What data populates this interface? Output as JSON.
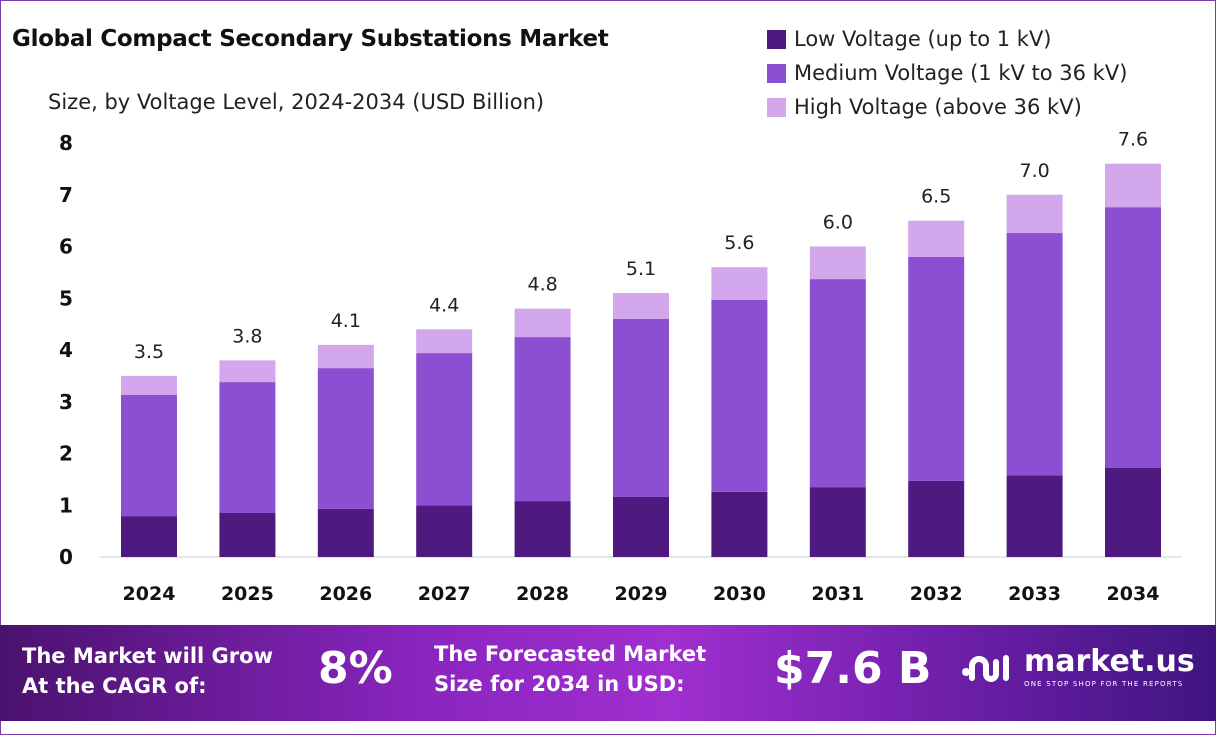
{
  "chart_data": {
    "type": "bar",
    "stacked": true,
    "title": "Global Compact Secondary Substations Market",
    "subtitle": "Size, by Voltage Level, 2024-2034 (USD Billion)",
    "categories": [
      "2024",
      "2025",
      "2026",
      "2027",
      "2028",
      "2029",
      "2030",
      "2031",
      "2032",
      "2033",
      "2034"
    ],
    "series": [
      {
        "name": "Low Voltage (up to 1 kV)",
        "color": "#4e1a80",
        "values": [
          0.79,
          0.85,
          0.93,
          1.0,
          1.08,
          1.16,
          1.26,
          1.35,
          1.47,
          1.58,
          1.72
        ]
      },
      {
        "name": "Medium Voltage (1 kV to 36 kV)",
        "color": "#8c4fd1",
        "values": [
          2.34,
          2.53,
          2.72,
          2.94,
          3.17,
          3.44,
          3.71,
          4.02,
          4.33,
          4.68,
          5.04
        ]
      },
      {
        "name": "High Voltage (above 36 kV)",
        "color": "#d3a7eb",
        "values": [
          0.37,
          0.42,
          0.45,
          0.46,
          0.55,
          0.5,
          0.63,
          0.63,
          0.7,
          0.74,
          0.84
        ]
      }
    ],
    "totals": [
      "3.5",
      "3.8",
      "4.1",
      "4.4",
      "4.8",
      "5.1",
      "5.6",
      "6.0",
      "6.5",
      "7.0",
      "7.6"
    ],
    "yticks": [
      "0",
      "1",
      "2",
      "3",
      "4",
      "5",
      "6",
      "7",
      "8"
    ],
    "ylim": [
      0,
      8
    ],
    "grid": false,
    "legend": "top-right"
  },
  "footer": {
    "cagr_label_1": "The Market will Grow",
    "cagr_label_2": "At the CAGR of:",
    "cagr_value": "8%",
    "forecast_label_1": "The Forecasted Market",
    "forecast_label_2": "Size for 2034 in USD:",
    "forecast_value": "$7.6 B",
    "logo_name": "market.us",
    "logo_tagline": "ONE STOP SHOP FOR THE REPORTS"
  }
}
